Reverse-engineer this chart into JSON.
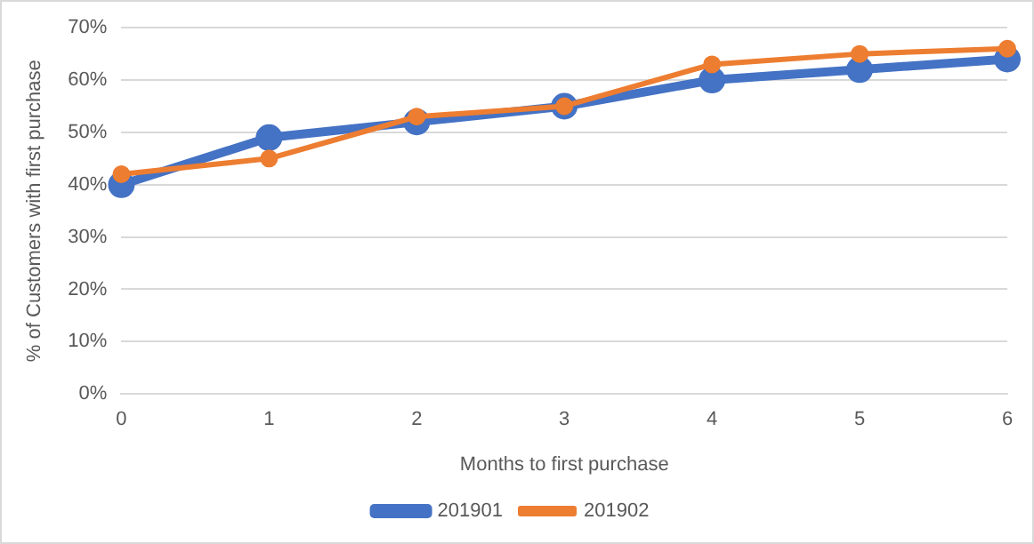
{
  "chart_data": {
    "type": "line",
    "xlabel": "Months to first purchase",
    "ylabel": "% of Customers with first purchase",
    "categories": [
      "0",
      "1",
      "2",
      "3",
      "4",
      "5",
      "6"
    ],
    "series": [
      {
        "name": "201901",
        "color": "#4472c4",
        "values": [
          40,
          49,
          52,
          55,
          60,
          62,
          64
        ]
      },
      {
        "name": "201902",
        "color": "#ed7d31",
        "values": [
          42,
          45,
          53,
          55,
          63,
          65,
          66
        ]
      }
    ],
    "ylim": [
      0,
      70
    ],
    "yticks": [
      {
        "value": 0,
        "label": "0%"
      },
      {
        "value": 10,
        "label": "10%"
      },
      {
        "value": 20,
        "label": "20%"
      },
      {
        "value": 30,
        "label": "30%"
      },
      {
        "value": 40,
        "label": "40%"
      },
      {
        "value": 50,
        "label": "50%"
      },
      {
        "value": 60,
        "label": "60%"
      },
      {
        "value": 70,
        "label": "70%"
      }
    ],
    "grid": "y",
    "legend": "bottom",
    "marker": "circle",
    "line_style": "solid"
  }
}
